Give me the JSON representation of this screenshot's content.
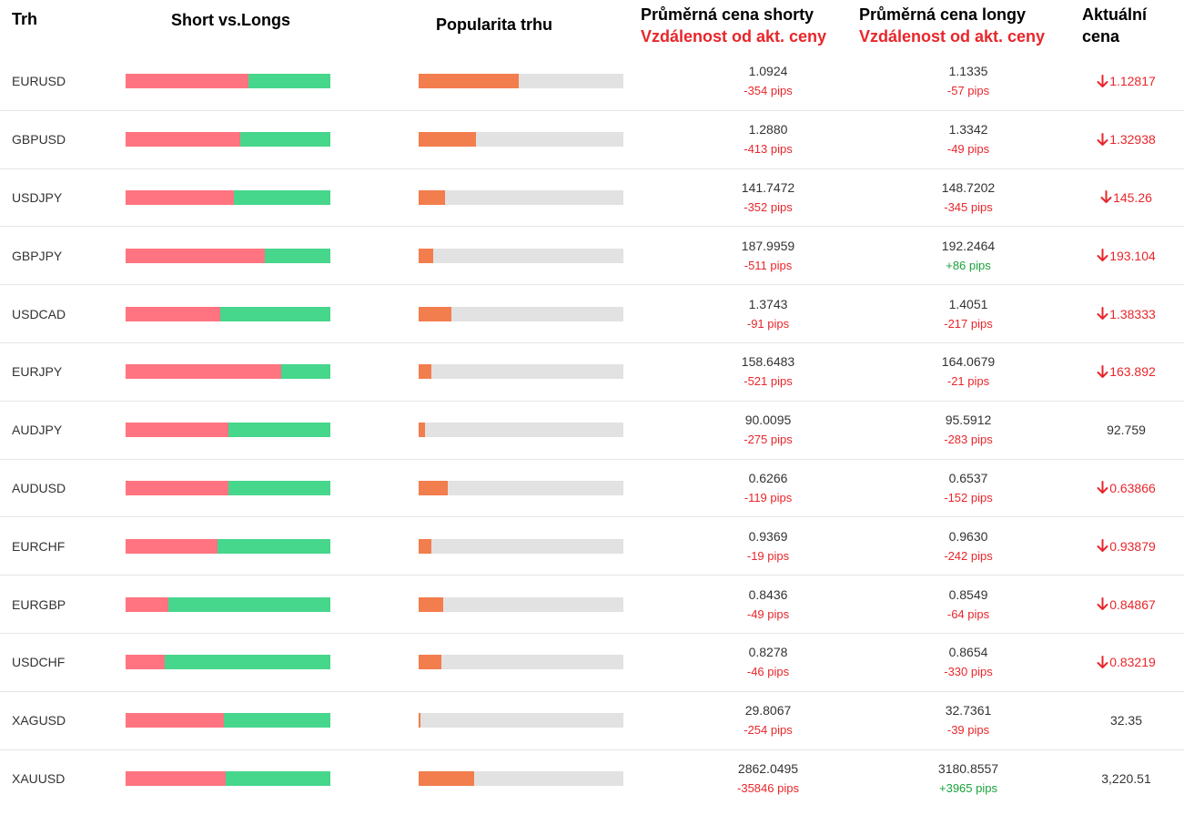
{
  "header": {
    "trh": "Trh",
    "short_vs_longs": "Short vs.Longs",
    "popularity": "Popularita trhu",
    "avg_short": "Průměrná cena shorty",
    "avg_short_sub": "Vzdálenost od akt. ceny",
    "avg_long": "Průměrná cena longy",
    "avg_long_sub": "Vzdálenost od akt. ceny",
    "current_line1": "Aktuální",
    "current_line2": "cena"
  },
  "colors": {
    "short": "#ff7480",
    "long": "#46d68c",
    "popularity": "#f27d4d",
    "track": "#e2e2e2",
    "negative": "#e8262b",
    "positive": "#1aa33a"
  },
  "rows": [
    {
      "pair": "EURUSD",
      "short_fraction": 0.6,
      "popularity": 0.49,
      "avg_short": "1.0924",
      "short_pips": "-354 pips",
      "short_pips_sign": "neg",
      "avg_long": "1.1335",
      "long_pips": "-57 pips",
      "long_pips_sign": "neg",
      "current": "1.12817",
      "trend": "down",
      "trend_icon": "arrow-down-icon"
    },
    {
      "pair": "GBPUSD",
      "short_fraction": 0.56,
      "popularity": 0.28,
      "avg_short": "1.2880",
      "short_pips": "-413 pips",
      "short_pips_sign": "neg",
      "avg_long": "1.3342",
      "long_pips": "-49 pips",
      "long_pips_sign": "neg",
      "current": "1.32938",
      "trend": "down",
      "trend_icon": "arrow-down-icon"
    },
    {
      "pair": "USDJPY",
      "short_fraction": 0.53,
      "popularity": 0.13,
      "avg_short": "141.7472",
      "short_pips": "-352 pips",
      "short_pips_sign": "neg",
      "avg_long": "148.7202",
      "long_pips": "-345 pips",
      "long_pips_sign": "neg",
      "current": "145.26",
      "trend": "down",
      "trend_icon": "arrow-down-icon"
    },
    {
      "pair": "GBPJPY",
      "short_fraction": 0.68,
      "popularity": 0.07,
      "avg_short": "187.9959",
      "short_pips": "-511 pips",
      "short_pips_sign": "neg",
      "avg_long": "192.2464",
      "long_pips": "+86 pips",
      "long_pips_sign": "pos",
      "current": "193.104",
      "trend": "down",
      "trend_icon": "arrow-down-icon"
    },
    {
      "pair": "USDCAD",
      "short_fraction": 0.46,
      "popularity": 0.16,
      "avg_short": "1.3743",
      "short_pips": "-91 pips",
      "short_pips_sign": "neg",
      "avg_long": "1.4051",
      "long_pips": "-217 pips",
      "long_pips_sign": "neg",
      "current": "1.38333",
      "trend": "down",
      "trend_icon": "arrow-down-icon"
    },
    {
      "pair": "EURJPY",
      "short_fraction": 0.76,
      "popularity": 0.06,
      "avg_short": "158.6483",
      "short_pips": "-521 pips",
      "short_pips_sign": "neg",
      "avg_long": "164.0679",
      "long_pips": "-21 pips",
      "long_pips_sign": "neg",
      "current": "163.892",
      "trend": "down",
      "trend_icon": "arrow-down-icon"
    },
    {
      "pair": "AUDJPY",
      "short_fraction": 0.5,
      "popularity": 0.03,
      "avg_short": "90.0095",
      "short_pips": "-275 pips",
      "short_pips_sign": "neg",
      "avg_long": "95.5912",
      "long_pips": "-283 pips",
      "long_pips_sign": "neg",
      "current": "92.759",
      "trend": "flat",
      "trend_icon": ""
    },
    {
      "pair": "AUDUSD",
      "short_fraction": 0.5,
      "popularity": 0.14,
      "avg_short": "0.6266",
      "short_pips": "-119 pips",
      "short_pips_sign": "neg",
      "avg_long": "0.6537",
      "long_pips": "-152 pips",
      "long_pips_sign": "neg",
      "current": "0.63866",
      "trend": "down",
      "trend_icon": "arrow-down-icon"
    },
    {
      "pair": "EURCHF",
      "short_fraction": 0.45,
      "popularity": 0.06,
      "avg_short": "0.9369",
      "short_pips": "-19 pips",
      "short_pips_sign": "neg",
      "avg_long": "0.9630",
      "long_pips": "-242 pips",
      "long_pips_sign": "neg",
      "current": "0.93879",
      "trend": "down",
      "trend_icon": "arrow-down-icon"
    },
    {
      "pair": "EURGBP",
      "short_fraction": 0.21,
      "popularity": 0.12,
      "avg_short": "0.8436",
      "short_pips": "-49 pips",
      "short_pips_sign": "neg",
      "avg_long": "0.8549",
      "long_pips": "-64 pips",
      "long_pips_sign": "neg",
      "current": "0.84867",
      "trend": "down",
      "trend_icon": "arrow-down-icon"
    },
    {
      "pair": "USDCHF",
      "short_fraction": 0.19,
      "popularity": 0.11,
      "avg_short": "0.8278",
      "short_pips": "-46 pips",
      "short_pips_sign": "neg",
      "avg_long": "0.8654",
      "long_pips": "-330 pips",
      "long_pips_sign": "neg",
      "current": "0.83219",
      "trend": "down",
      "trend_icon": "arrow-down-icon"
    },
    {
      "pair": "XAGUSD",
      "short_fraction": 0.48,
      "popularity": 0.01,
      "avg_short": "29.8067",
      "short_pips": "-254 pips",
      "short_pips_sign": "neg",
      "avg_long": "32.7361",
      "long_pips": "-39 pips",
      "long_pips_sign": "neg",
      "current": "32.35",
      "trend": "flat",
      "trend_icon": ""
    },
    {
      "pair": "XAUUSD",
      "short_fraction": 0.49,
      "popularity": 0.27,
      "avg_short": "2862.0495",
      "short_pips": "-35846 pips",
      "short_pips_sign": "neg",
      "avg_long": "3180.8557",
      "long_pips": "+3965 pips",
      "long_pips_sign": "pos",
      "current": "3,220.51",
      "trend": "flat",
      "trend_icon": ""
    }
  ]
}
